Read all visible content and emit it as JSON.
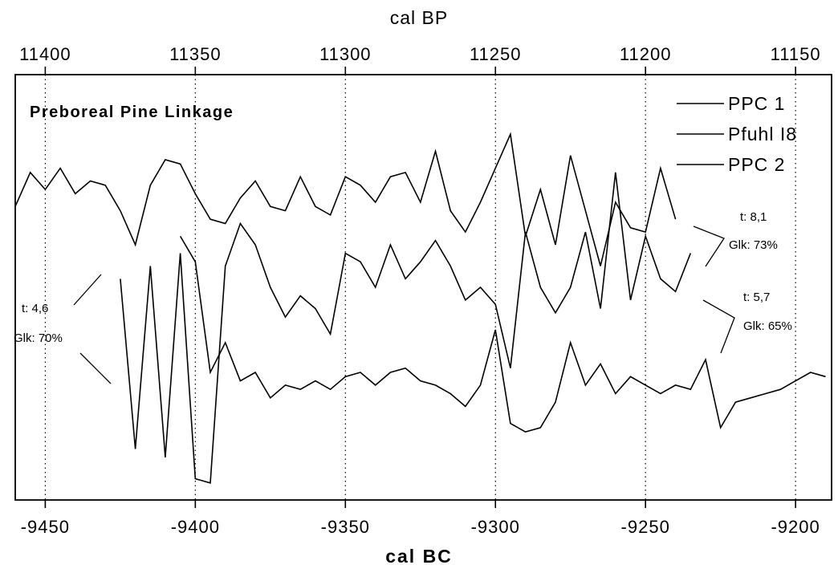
{
  "chart_data": {
    "type": "line",
    "title": "Preboreal Pine Linkage",
    "xlabel": "cal BC",
    "x2label": "cal BP",
    "xlim": [
      -9460,
      -9188
    ],
    "ylim": [
      0,
      100
    ],
    "x_ticks": [
      "-9450",
      "-9400",
      "-9350",
      "-9300",
      "-9250",
      "-9200"
    ],
    "x_tick_values": [
      -9450,
      -9400,
      -9350,
      -9300,
      -9250,
      -9200
    ],
    "x2_ticks": [
      "11400",
      "11350",
      "11300",
      "11250",
      "11200",
      "11150"
    ],
    "x2_tick_values": [
      -9450,
      -9400,
      -9350,
      -9300,
      -9250,
      -9200
    ],
    "grid": "vertical dotted",
    "legend_position": "top-right",
    "series": [
      {
        "name": "PPC 1",
        "x": [
          -9460,
          -9455,
          -9450,
          -9445,
          -9440,
          -9435,
          -9430,
          -9425,
          -9420,
          -9415,
          -9410,
          -9405,
          -9400,
          -9395,
          -9390,
          -9385,
          -9380,
          -9375,
          -9370,
          -9365,
          -9360,
          -9355,
          -9350,
          -9345,
          -9340,
          -9335,
          -9330,
          -9325,
          -9320,
          -9315,
          -9310,
          -9305,
          -9300,
          -9295,
          -9290,
          -9285,
          -9280,
          -9275,
          -9270,
          -9265,
          -9260,
          -9255,
          -9250,
          -9245,
          -9240
        ],
        "y": [
          69,
          77,
          73,
          78,
          72,
          75,
          74,
          68,
          60,
          74,
          80,
          79,
          72,
          66,
          65,
          71,
          75,
          69,
          68,
          76,
          69,
          67,
          76,
          74,
          70,
          76,
          77,
          70,
          82,
          68,
          63,
          70,
          78,
          86,
          62,
          73,
          60,
          81,
          68,
          55,
          70,
          64,
          63,
          78,
          66
        ]
      },
      {
        "name": "Pfuhl I8",
        "x": [
          -9425,
          -9420,
          -9415,
          -9410,
          -9405,
          -9400,
          -9395,
          -9390,
          -9385,
          -9380,
          -9375,
          -9370,
          -9365,
          -9360,
          -9355,
          -9350,
          -9345,
          -9340,
          -9335,
          -9330,
          -9325,
          -9320,
          -9315,
          -9310,
          -9305,
          -9300,
          -9295,
          -9290,
          -9285,
          -9280,
          -9275,
          -9270,
          -9265,
          -9260,
          -9255,
          -9250,
          -9245,
          -9240,
          -9235
        ],
        "y": [
          52,
          12,
          55,
          10,
          58,
          5,
          4,
          55,
          65,
          60,
          50,
          43,
          48,
          45,
          39,
          58,
          56,
          50,
          60,
          52,
          56,
          61,
          55,
          47,
          50,
          46,
          31,
          63,
          50,
          44,
          50,
          63,
          45,
          77,
          47,
          62,
          52,
          49,
          58
        ]
      },
      {
        "name": "PPC 2",
        "x": [
          -9405,
          -9400,
          -9395,
          -9390,
          -9385,
          -9380,
          -9375,
          -9370,
          -9365,
          -9360,
          -9355,
          -9350,
          -9345,
          -9340,
          -9335,
          -9330,
          -9325,
          -9320,
          -9315,
          -9310,
          -9305,
          -9300,
          -9295,
          -9290,
          -9285,
          -9280,
          -9275,
          -9270,
          -9265,
          -9260,
          -9255,
          -9250,
          -9245,
          -9240,
          -9235,
          -9230,
          -9225,
          -9220,
          -9215,
          -9210,
          -9205,
          -9200,
          -9195,
          -9190
        ],
        "y": [
          62,
          56,
          30,
          37,
          28,
          30,
          24,
          27,
          26,
          28,
          26,
          29,
          30,
          27,
          30,
          31,
          28,
          27,
          25,
          22,
          27,
          40,
          18,
          16,
          17,
          23,
          37,
          27,
          32,
          25,
          29,
          27,
          25,
          27,
          26,
          33,
          17,
          23,
          24,
          25,
          26,
          28,
          30,
          29
        ]
      }
    ],
    "annotations": [
      {
        "text_t": "t: 4,6",
        "text_g": "Glk: 70%"
      },
      {
        "text_t": "t: 8,1",
        "text_g": "Glk: 73%"
      },
      {
        "text_t": "t: 5,7",
        "text_g": "Glk: 65%"
      }
    ]
  }
}
